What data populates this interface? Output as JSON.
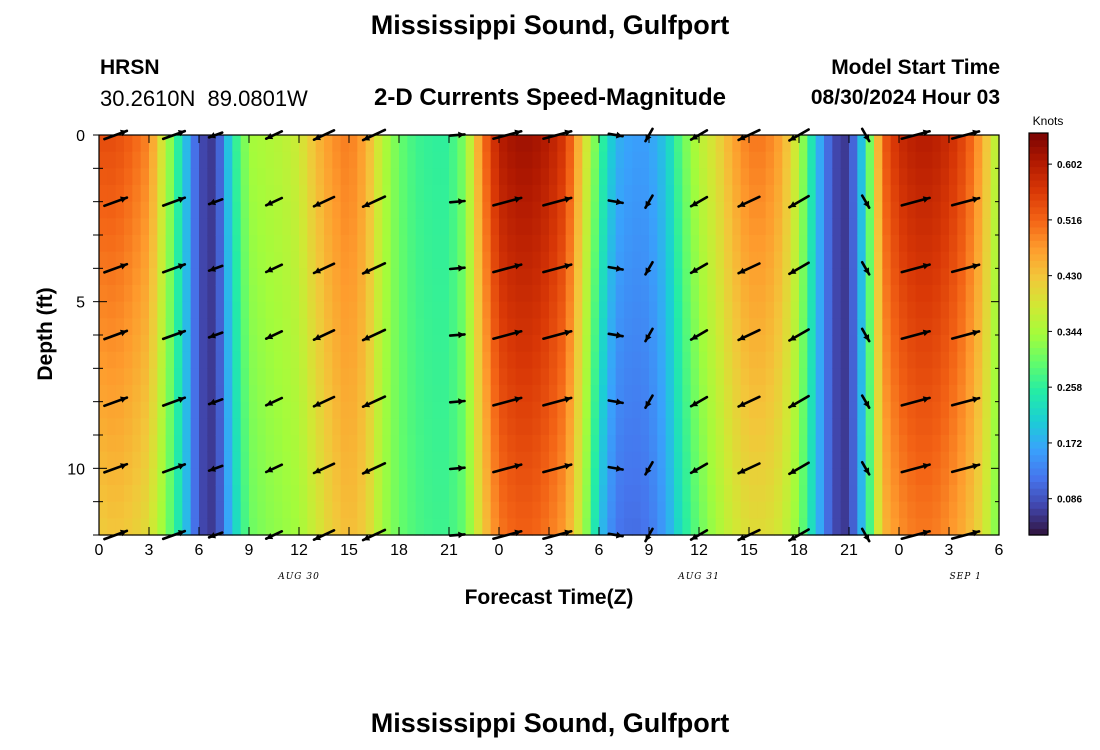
{
  "header": {
    "title": "Mississippi Sound, Gulfport",
    "station_code": "HRSN",
    "station_coords": "30.2610N  89.0801W",
    "product_title": "2-D Currents Speed-Magnitude",
    "model_start_label": "Model Start Time",
    "model_start_value": "08/30/2024 Hour 03",
    "footer_title": "Mississippi Sound, Gulfport"
  },
  "colors": {
    "colormap": [
      "#30123b",
      "#4145ab",
      "#4675ed",
      "#39a2fc",
      "#1bcfd4",
      "#24eca6",
      "#61fc6c",
      "#a4fc3b",
      "#d1e834",
      "#f3c63a",
      "#fe9b2d",
      "#f36315",
      "#d93806",
      "#b11901",
      "#7a0403"
    ],
    "arrow": "#000000"
  },
  "chart_data": {
    "type": "heatmap",
    "title": "2-D Currents Speed-Magnitude",
    "xlabel": "Forecast Time(Z)",
    "ylabel": "Depth (ft)",
    "x_unit": "hours since 2024-08-30 00Z",
    "x_tick_labels": [
      "0",
      "3",
      "6",
      "9",
      "12",
      "15",
      "18",
      "21",
      "0",
      "3",
      "6",
      "9",
      "12",
      "15",
      "18",
      "21",
      "0",
      "6"
    ],
    "x_tick_hours": [
      0,
      3,
      6,
      9,
      12,
      15,
      18,
      21,
      24,
      27,
      30,
      33,
      36,
      39,
      42,
      45,
      48,
      54
    ],
    "x_extra_tick_label": "3",
    "x_extra_tick_hour": 51,
    "date_labels": [
      "AUG 30",
      "AUG 31",
      "SEP 1"
    ],
    "date_label_hours": [
      12,
      36,
      52
    ],
    "xlim": [
      0,
      54
    ],
    "ylim": [
      0,
      12
    ],
    "y_inverted": true,
    "y_tick_labels": [
      "0",
      "5",
      "10"
    ],
    "y_ticks": [
      0,
      5,
      10
    ],
    "colorbar": {
      "title": "Knots",
      "range": [
        0.03,
        0.65
      ],
      "tick_labels": [
        "0.602",
        "0.516",
        "0.430",
        "0.344",
        "0.258",
        "0.172",
        "0.086"
      ],
      "ticks": [
        0.602,
        0.516,
        0.43,
        0.344,
        0.258,
        0.172,
        0.086
      ]
    },
    "speed_profile": {
      "hours": [
        0,
        1,
        2,
        3,
        4,
        5,
        6,
        7,
        8,
        9,
        10,
        11,
        12,
        13,
        14,
        15,
        16,
        17,
        18,
        19,
        20,
        21,
        22,
        23,
        24,
        25,
        26,
        27,
        28,
        29,
        30,
        31,
        32,
        33,
        34,
        35,
        36,
        37,
        38,
        39,
        40,
        41,
        42,
        43,
        44,
        45,
        46,
        47,
        48,
        49,
        50,
        51,
        52,
        53,
        54
      ],
      "surface_speed": [
        0.54,
        0.54,
        0.52,
        0.49,
        0.36,
        0.22,
        0.08,
        0.06,
        0.24,
        0.34,
        0.35,
        0.36,
        0.38,
        0.44,
        0.48,
        0.5,
        0.46,
        0.36,
        0.3,
        0.27,
        0.26,
        0.26,
        0.32,
        0.5,
        0.6,
        0.62,
        0.62,
        0.6,
        0.56,
        0.42,
        0.28,
        0.18,
        0.16,
        0.16,
        0.2,
        0.3,
        0.36,
        0.4,
        0.46,
        0.5,
        0.5,
        0.46,
        0.36,
        0.2,
        0.08,
        0.06,
        0.24,
        0.52,
        0.58,
        0.6,
        0.6,
        0.58,
        0.54,
        0.46,
        0.34
      ],
      "bottom_speed": [
        0.42,
        0.43,
        0.42,
        0.4,
        0.32,
        0.22,
        0.08,
        0.06,
        0.2,
        0.3,
        0.32,
        0.33,
        0.34,
        0.38,
        0.42,
        0.44,
        0.42,
        0.34,
        0.3,
        0.28,
        0.27,
        0.27,
        0.3,
        0.42,
        0.5,
        0.52,
        0.52,
        0.5,
        0.47,
        0.36,
        0.2,
        0.12,
        0.11,
        0.12,
        0.16,
        0.24,
        0.3,
        0.34,
        0.38,
        0.4,
        0.4,
        0.38,
        0.32,
        0.2,
        0.08,
        0.06,
        0.22,
        0.44,
        0.48,
        0.5,
        0.5,
        0.48,
        0.45,
        0.4,
        0.3
      ]
    },
    "vectors": {
      "hours": [
        1,
        4.5,
        7,
        10.5,
        13.5,
        16.5,
        21.5,
        24.5,
        27.5,
        31,
        33,
        36,
        39,
        42,
        46,
        49,
        52
      ],
      "depths": [
        0,
        2,
        4,
        6,
        8,
        10,
        12
      ],
      "speed_knots": [
        0.5,
        0.48,
        0.1,
        0.36,
        0.46,
        0.5,
        0.3,
        0.6,
        0.6,
        0.22,
        0.18,
        0.38,
        0.48,
        0.46,
        0.1,
        0.6,
        0.58
      ],
      "direction_deg": [
        70,
        70,
        250,
        245,
        245,
        245,
        85,
        75,
        75,
        100,
        210,
        240,
        245,
        240,
        150,
        75,
        75
      ]
    }
  }
}
